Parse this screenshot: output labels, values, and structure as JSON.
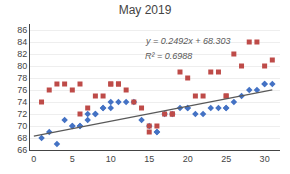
{
  "chart_data": {
    "type": "scatter",
    "title": "May 2019",
    "xlim": [
      -0.5,
      32
    ],
    "ylim": [
      66,
      87
    ],
    "xticks": [
      0,
      5,
      10,
      15,
      20,
      25,
      30
    ],
    "yticks": [
      66,
      68,
      70,
      72,
      74,
      76,
      78,
      80,
      82,
      84,
      86
    ],
    "grid": "y",
    "series": [
      {
        "color": "#4472C4",
        "marker": "diamond",
        "x": [
          1,
          2,
          3,
          4,
          5,
          5,
          6,
          6,
          7,
          7,
          8,
          8,
          9,
          9,
          10,
          10,
          11,
          12,
          13,
          14,
          15,
          16,
          16,
          17,
          18,
          19,
          20,
          20,
          21,
          22,
          23,
          24,
          25,
          25,
          26,
          27,
          28,
          29,
          30,
          30,
          31
        ],
        "values": [
          68,
          69,
          67,
          71,
          70,
          70,
          70,
          70,
          71,
          72,
          72,
          72,
          73,
          73,
          73,
          74,
          74,
          74,
          74,
          71,
          70,
          69,
          69,
          72,
          72,
          73,
          73,
          73,
          72,
          72,
          73,
          73,
          73,
          73,
          74,
          75,
          76,
          76,
          77,
          77,
          77
        ]
      },
      {
        "color": "#BE4B48",
        "marker": "square",
        "x": [
          1,
          2,
          3,
          4,
          5,
          6,
          6,
          7,
          8,
          9,
          10,
          10,
          11,
          11,
          12,
          13,
          14,
          15,
          15,
          16,
          17,
          18,
          18,
          19,
          20,
          21,
          22,
          23,
          24,
          25,
          25,
          26,
          27,
          28,
          29,
          30,
          31
        ],
        "values": [
          74,
          76,
          77,
          77,
          76,
          77,
          72,
          73,
          75,
          75,
          77,
          77,
          77,
          77,
          76,
          74,
          73,
          69,
          70,
          70,
          72,
          72,
          72,
          79,
          78,
          75,
          75,
          79,
          79,
          75,
          75,
          82,
          80,
          84,
          84,
          80,
          81
        ]
      },
      {
        "type": "line",
        "color": "#595959",
        "x": [
          0,
          31
        ],
        "values": [
          68.303,
          76.0282
        ]
      }
    ],
    "annotations": [
      "y = 0.2492x + 68.303",
      "R² = 0.6988"
    ]
  }
}
